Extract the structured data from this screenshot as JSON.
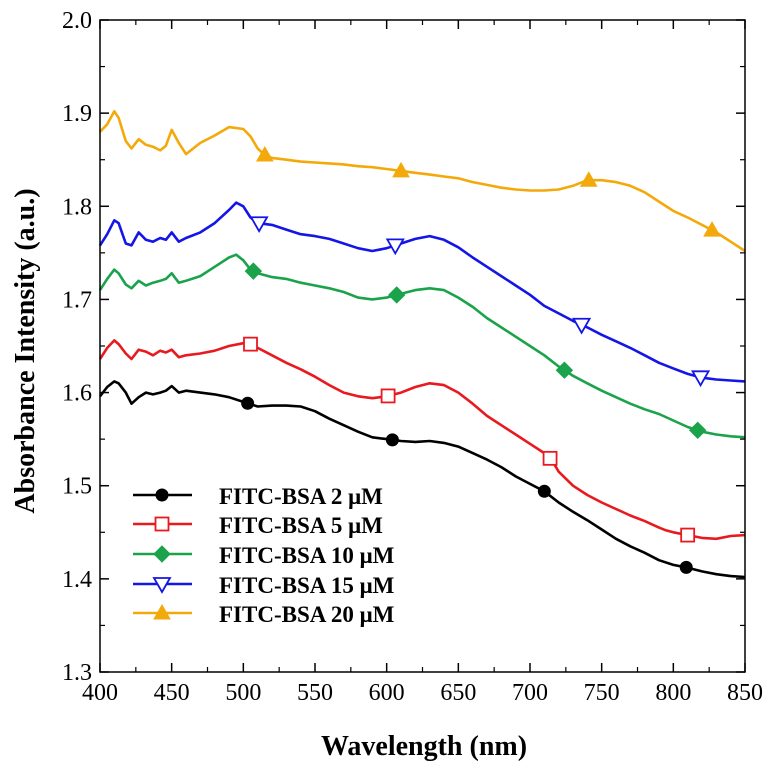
{
  "chart_data": {
    "type": "line",
    "title": "",
    "xlabel": "Wavelength (nm)",
    "ylabel": "Absorbance Intensity (a.u.)",
    "xlim": [
      400,
      850
    ],
    "ylim": [
      1.3,
      2.0
    ],
    "xticks": [
      400,
      450,
      500,
      550,
      600,
      650,
      700,
      750,
      800,
      850
    ],
    "yticks": [
      1.3,
      1.4,
      1.5,
      1.6,
      1.7,
      1.8,
      1.9,
      2.0
    ],
    "xtick_labels": [
      "400",
      "450",
      "500",
      "550",
      "600",
      "650",
      "700",
      "750",
      "800",
      "850"
    ],
    "ytick_labels": [
      "1.3",
      "1.4",
      "1.5",
      "1.6",
      "1.7",
      "1.8",
      "1.9",
      "2.0"
    ],
    "legend_position": "bottom-left",
    "series": [
      {
        "name": "FITC-BSA 2 μM",
        "color": "#000000",
        "marker": "filled-circle",
        "x": [
          400,
          405,
          410,
          413,
          418,
          422,
          427,
          432,
          437,
          442,
          446,
          450,
          455,
          460,
          470,
          480,
          490,
          500,
          510,
          520,
          530,
          540,
          550,
          560,
          570,
          580,
          590,
          600,
          610,
          620,
          630,
          640,
          650,
          660,
          670,
          680,
          690,
          700,
          710,
          720,
          730,
          740,
          750,
          760,
          770,
          780,
          790,
          800,
          810,
          820,
          830,
          840,
          850
        ],
        "y": [
          1.596,
          1.606,
          1.612,
          1.61,
          1.6,
          1.588,
          1.595,
          1.6,
          1.598,
          1.6,
          1.602,
          1.607,
          1.6,
          1.602,
          1.6,
          1.598,
          1.595,
          1.59,
          1.585,
          1.586,
          1.586,
          1.585,
          1.58,
          1.572,
          1.565,
          1.558,
          1.552,
          1.55,
          1.548,
          1.547,
          1.548,
          1.546,
          1.542,
          1.535,
          1.528,
          1.52,
          1.51,
          1.502,
          1.494,
          1.482,
          1.472,
          1.463,
          1.453,
          1.443,
          1.435,
          1.428,
          1.42,
          1.415,
          1.412,
          1.408,
          1.405,
          1.403,
          1.402
        ],
        "marker_x": [
          503,
          604,
          710,
          809
        ]
      },
      {
        "name": "FITC-BSA 5 μM",
        "color": "#e8191f",
        "marker": "open-square",
        "x": [
          400,
          405,
          410,
          413,
          418,
          422,
          427,
          432,
          437,
          442,
          446,
          450,
          455,
          460,
          470,
          480,
          490,
          500,
          505,
          510,
          520,
          530,
          540,
          550,
          560,
          570,
          580,
          590,
          600,
          610,
          620,
          630,
          640,
          650,
          660,
          670,
          680,
          690,
          700,
          710,
          715,
          720,
          730,
          740,
          750,
          760,
          770,
          780,
          790,
          795,
          800,
          810,
          820,
          830,
          840,
          850
        ],
        "y": [
          1.636,
          1.648,
          1.656,
          1.652,
          1.642,
          1.636,
          1.646,
          1.644,
          1.64,
          1.645,
          1.643,
          1.646,
          1.638,
          1.64,
          1.642,
          1.645,
          1.65,
          1.653,
          1.652,
          1.648,
          1.64,
          1.632,
          1.625,
          1.617,
          1.608,
          1.6,
          1.596,
          1.594,
          1.596,
          1.6,
          1.606,
          1.61,
          1.608,
          1.6,
          1.588,
          1.575,
          1.565,
          1.555,
          1.545,
          1.535,
          1.528,
          1.515,
          1.5,
          1.49,
          1.482,
          1.475,
          1.468,
          1.462,
          1.455,
          1.452,
          1.45,
          1.447,
          1.444,
          1.443,
          1.446,
          1.447
        ],
        "marker_x": [
          505,
          601,
          714,
          810
        ]
      },
      {
        "name": "FITC-BSA 10 μM",
        "color": "#1aa34a",
        "marker": "filled-diamond",
        "x": [
          400,
          405,
          410,
          413,
          418,
          422,
          427,
          432,
          437,
          442,
          446,
          450,
          455,
          460,
          470,
          480,
          490,
          495,
          500,
          505,
          510,
          520,
          530,
          540,
          550,
          560,
          570,
          580,
          590,
          600,
          610,
          620,
          630,
          640,
          650,
          660,
          670,
          680,
          690,
          700,
          710,
          720,
          730,
          740,
          750,
          760,
          770,
          780,
          790,
          800,
          810,
          820,
          830,
          840,
          850
        ],
        "y": [
          1.71,
          1.722,
          1.732,
          1.728,
          1.716,
          1.712,
          1.72,
          1.715,
          1.718,
          1.72,
          1.722,
          1.728,
          1.718,
          1.72,
          1.725,
          1.735,
          1.745,
          1.748,
          1.742,
          1.732,
          1.728,
          1.724,
          1.722,
          1.718,
          1.715,
          1.712,
          1.708,
          1.702,
          1.7,
          1.702,
          1.706,
          1.71,
          1.712,
          1.71,
          1.702,
          1.692,
          1.68,
          1.67,
          1.66,
          1.65,
          1.64,
          1.628,
          1.618,
          1.61,
          1.602,
          1.595,
          1.588,
          1.582,
          1.577,
          1.57,
          1.563,
          1.558,
          1.555,
          1.553,
          1.552
        ],
        "marker_x": [
          507,
          607,
          724,
          817
        ]
      },
      {
        "name": "FITC-BSA 15 μM",
        "color": "#1416e6",
        "marker": "open-triangle-down",
        "x": [
          400,
          405,
          410,
          413,
          418,
          422,
          427,
          432,
          437,
          442,
          446,
          450,
          455,
          460,
          470,
          480,
          490,
          495,
          500,
          505,
          510,
          520,
          530,
          540,
          550,
          560,
          570,
          580,
          590,
          600,
          610,
          620,
          630,
          640,
          650,
          660,
          670,
          680,
          690,
          700,
          710,
          720,
          730,
          740,
          750,
          760,
          770,
          780,
          790,
          800,
          810,
          820,
          830,
          840,
          850
        ],
        "y": [
          1.758,
          1.77,
          1.785,
          1.782,
          1.76,
          1.758,
          1.772,
          1.764,
          1.762,
          1.766,
          1.764,
          1.772,
          1.762,
          1.766,
          1.772,
          1.782,
          1.796,
          1.804,
          1.8,
          1.788,
          1.782,
          1.78,
          1.775,
          1.77,
          1.768,
          1.765,
          1.76,
          1.755,
          1.752,
          1.755,
          1.76,
          1.765,
          1.768,
          1.764,
          1.756,
          1.745,
          1.735,
          1.725,
          1.715,
          1.705,
          1.693,
          1.685,
          1.677,
          1.67,
          1.662,
          1.655,
          1.648,
          1.64,
          1.632,
          1.626,
          1.62,
          1.616,
          1.614,
          1.613,
          1.612
        ],
        "marker_x": [
          511,
          606,
          736,
          819
        ]
      },
      {
        "name": "FITC-BSA 20 μM",
        "color": "#f4a90a",
        "marker": "filled-triangle-up",
        "x": [
          400,
          405,
          410,
          413,
          418,
          422,
          427,
          432,
          437,
          442,
          446,
          450,
          455,
          460,
          470,
          480,
          490,
          500,
          505,
          510,
          515,
          520,
          530,
          540,
          550,
          560,
          570,
          580,
          590,
          600,
          610,
          620,
          630,
          640,
          650,
          660,
          670,
          680,
          690,
          700,
          710,
          720,
          730,
          740,
          750,
          760,
          770,
          780,
          790,
          800,
          810,
          820,
          830,
          840,
          850
        ],
        "y": [
          1.88,
          1.888,
          1.902,
          1.895,
          1.87,
          1.862,
          1.872,
          1.866,
          1.864,
          1.86,
          1.865,
          1.882,
          1.868,
          1.856,
          1.868,
          1.876,
          1.885,
          1.883,
          1.875,
          1.862,
          1.855,
          1.852,
          1.85,
          1.848,
          1.847,
          1.846,
          1.845,
          1.843,
          1.842,
          1.84,
          1.838,
          1.836,
          1.834,
          1.832,
          1.83,
          1.826,
          1.823,
          1.82,
          1.818,
          1.817,
          1.817,
          1.818,
          1.822,
          1.828,
          1.828,
          1.826,
          1.822,
          1.815,
          1.805,
          1.795,
          1.788,
          1.78,
          1.772,
          1.762,
          1.752
        ],
        "marker_x": [
          515,
          610,
          741,
          827
        ]
      }
    ]
  }
}
